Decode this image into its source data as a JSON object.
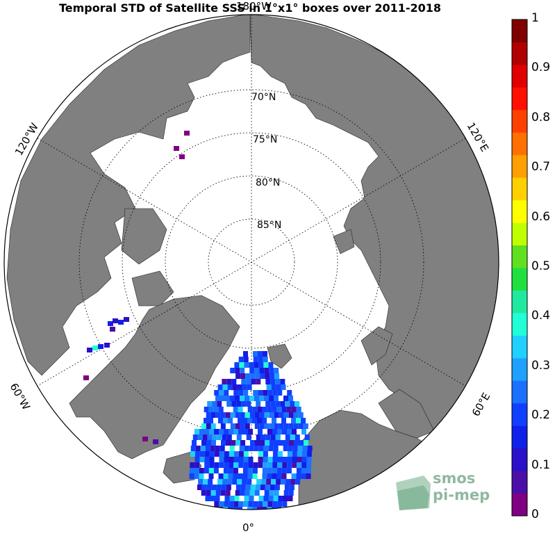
{
  "title": "Temporal STD of Satellite SSS in 1°x1° boxes over 2011-2018",
  "map": {
    "projection": "north polar stereographic",
    "latitude_labels": [
      "70°N",
      "75°N",
      "80°N",
      "85°N"
    ],
    "longitude_labels": {
      "top": "180°W",
      "upper_left": "120°W",
      "upper_right": "120°E",
      "lower_left": "60°W",
      "lower_right": "60°E",
      "bottom": "0°"
    },
    "land_color": "#808080",
    "ocean_color": "#ffffff"
  },
  "colorbar": {
    "min": 0,
    "max": 1,
    "tick_labels": [
      "1",
      "0.9",
      "0.8",
      "0.7",
      "0.6",
      "0.5",
      "0.4",
      "0.3",
      "0.2",
      "0.1",
      "0"
    ],
    "colors": [
      "#7f0080",
      "#4b0fa8",
      "#2a10c8",
      "#1020e8",
      "#1040ff",
      "#1a70ff",
      "#20a0ff",
      "#20d0ff",
      "#20ffd8",
      "#20e8a0",
      "#20e040",
      "#60e020",
      "#c0ff00",
      "#ffff00",
      "#ffd000",
      "#ffa000",
      "#ff7000",
      "#ff4000",
      "#ff1000",
      "#e00000",
      "#b00000",
      "#800000"
    ]
  },
  "logo": {
    "line1": "smos",
    "line2": "pi-mep"
  }
}
